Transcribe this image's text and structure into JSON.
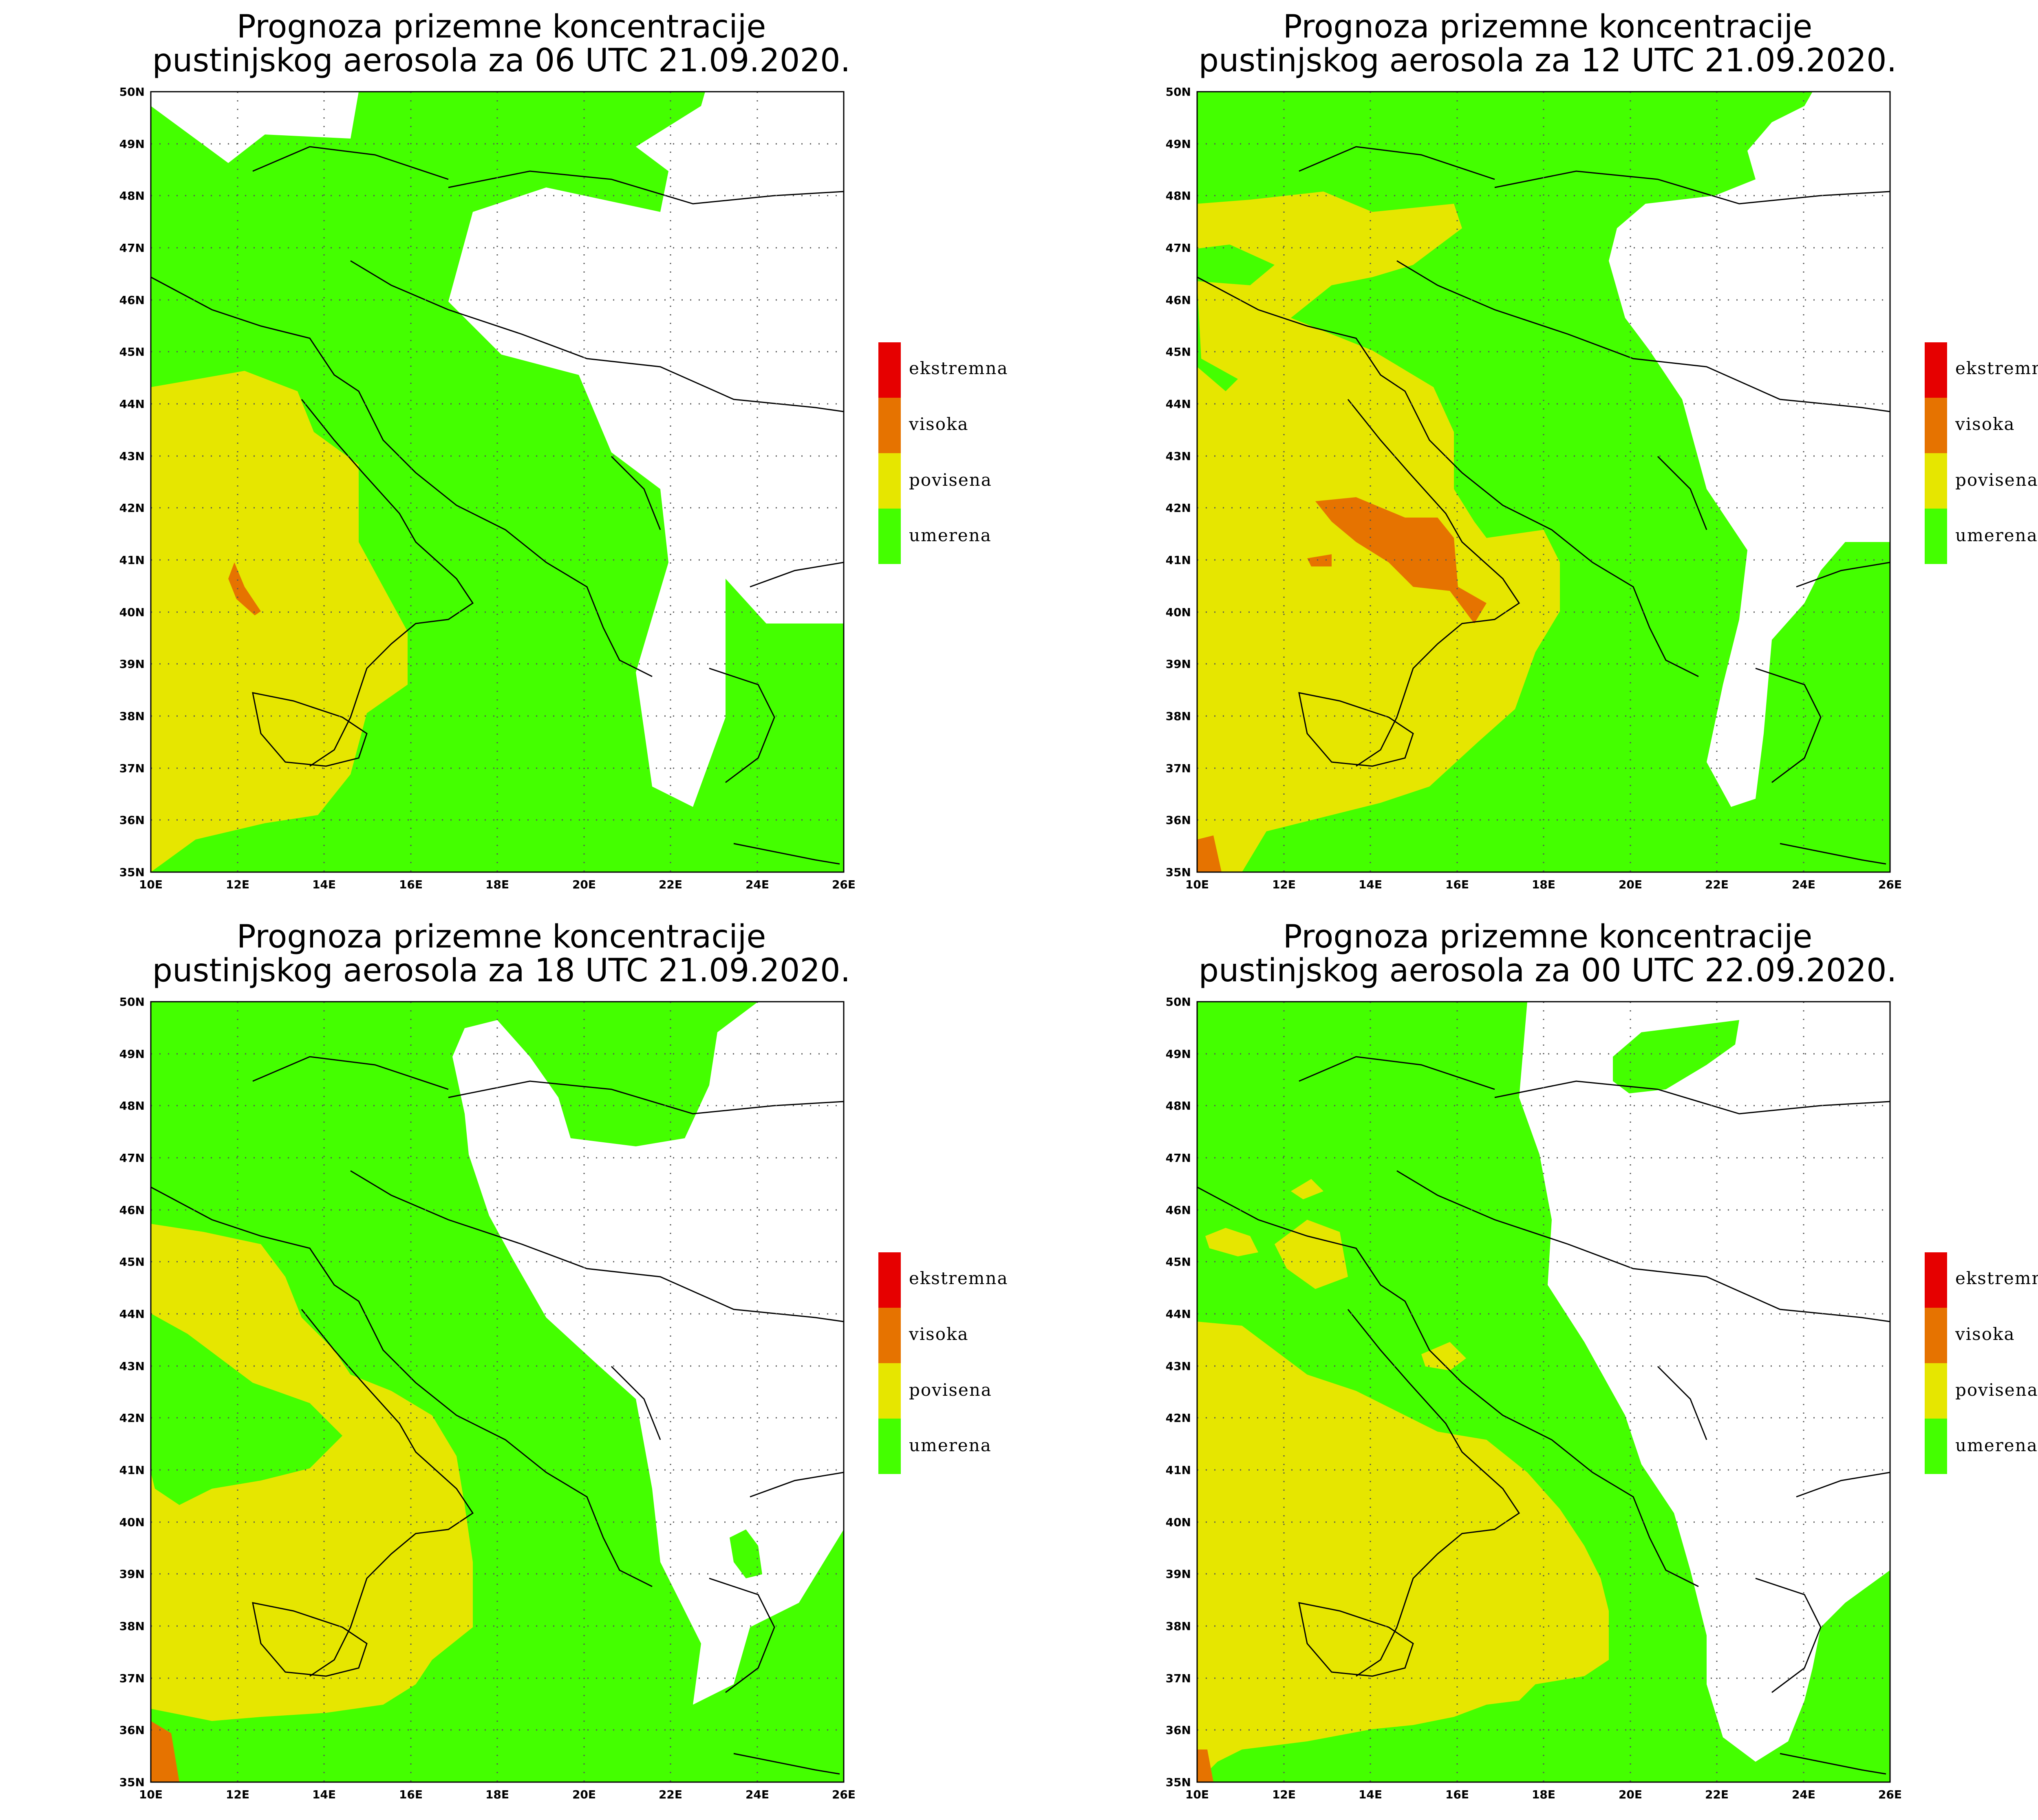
{
  "colors": {
    "umerena": "#44ff00",
    "povisena": "#e6e600",
    "visoka": "#e67300",
    "ekstremna": "#e60000",
    "background": "#ffffff"
  },
  "axes": {
    "lon_ticks": [
      "10E",
      "12E",
      "14E",
      "16E",
      "18E",
      "20E",
      "22E",
      "24E",
      "26E"
    ],
    "lat_ticks": [
      "35N",
      "36N",
      "37N",
      "38N",
      "39N",
      "40N",
      "41N",
      "42N",
      "43N",
      "44N",
      "45N",
      "46N",
      "47N",
      "48N",
      "49N",
      "50N"
    ]
  },
  "legend": [
    {
      "key": "ekstremna",
      "label": "ekstremna"
    },
    {
      "key": "visoka",
      "label": "visoka"
    },
    {
      "key": "povisena",
      "label": "povisena"
    },
    {
      "key": "umerena",
      "label": "umerena"
    }
  ],
  "panels": [
    {
      "title_line1": "Prognoza prizemne koncentracije",
      "title_line2": "pustinjskog aerosola za 06 UTC 21.09.2020."
    },
    {
      "title_line1": "Prognoza prizemne koncentracije",
      "title_line2": "pustinjskog aerosola za 12 UTC 21.09.2020."
    },
    {
      "title_line1": "Prognoza prizemne koncentracije",
      "title_line2": "pustinjskog aerosola za 18 UTC 21.09.2020."
    },
    {
      "title_line1": "Prognoza prizemne koncentracije",
      "title_line2": "pustinjskog aerosola za 00 UTC 22.09.2020."
    }
  ]
}
